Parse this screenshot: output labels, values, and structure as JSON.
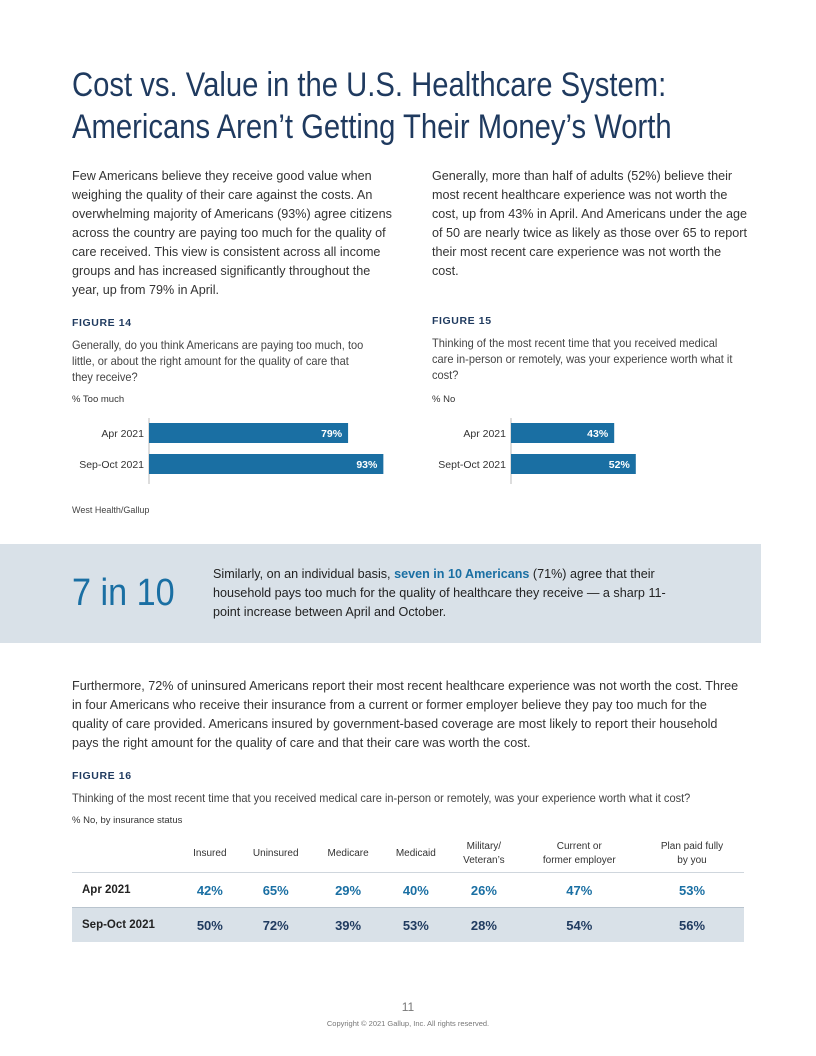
{
  "title": {
    "line1": "Cost vs. Value in the U.S. Healthcare System:",
    "line2": "Americans Aren’t Getting Their Money’s Worth"
  },
  "intro_left": "Few Americans believe they receive good value when weighing the quality of their care against the costs. An overwhelming majority of Americans (93%) agree citizens across the country are paying too much for the quality of care received. This view is consistent across all income groups and has increased significantly throughout the year, up from 79% in April.",
  "intro_right": "Generally, more than half of adults (52%) believe their most recent healthcare experience was not worth the cost, up from 43% in April. And Americans under the age of 50 are nearly twice as likely as those over 65 to report their most recent care experience was not worth the cost.",
  "figure14": {
    "label": "FIGURE 14",
    "question": "Generally, do you think Americans are paying too much, too little, or about the right amount for the quality of care that they receive?",
    "unit": "% Too much"
  },
  "figure15": {
    "label": "FIGURE 15",
    "question": "Thinking of the most recent time that you received medical care in-person or remotely, was your experience worth what it cost?",
    "unit": "% No"
  },
  "chart_data": [
    {
      "type": "bar",
      "orientation": "horizontal",
      "categories": [
        "Apr 2021",
        "Sep-Oct 2021"
      ],
      "values": [
        79,
        93
      ],
      "value_labels": [
        "79%",
        "93%"
      ],
      "title": "",
      "xlabel": "",
      "ylabel": "",
      "xlim": [
        0,
        100
      ],
      "grid": false,
      "color": "#1a6fa3"
    },
    {
      "type": "bar",
      "orientation": "horizontal",
      "categories": [
        "Apr 2021",
        "Sept-Oct 2021"
      ],
      "values": [
        43,
        52
      ],
      "value_labels": [
        "43%",
        "52%"
      ],
      "title": "",
      "xlabel": "",
      "ylabel": "",
      "xlim": [
        0,
        100
      ],
      "grid": false,
      "color": "#1a6fa3"
    },
    {
      "type": "table",
      "columns": [
        "Insured",
        "Uninsured",
        "Medicare",
        "Medicaid",
        "Military/ Veteran’s",
        "Current or former employer",
        "Plan paid fully by you"
      ],
      "rows": [
        {
          "label": "Apr 2021",
          "values": [
            "42%",
            "65%",
            "29%",
            "40%",
            "26%",
            "47%",
            "53%"
          ]
        },
        {
          "label": "Sep-Oct 2021",
          "values": [
            "50%",
            "72%",
            "39%",
            "53%",
            "28%",
            "54%",
            "56%"
          ]
        }
      ]
    }
  ],
  "source": "West Health/Gallup",
  "callout": {
    "big": "7 in 10",
    "text_before": "Similarly, on an individual basis, ",
    "text_highlight": "seven in 10 Americans",
    "text_after": " (71%) agree that their household pays too much for the quality of healthcare they receive — a sharp 11-point increase between April and October."
  },
  "body2": "Furthermore, 72% of uninsured Americans report their most recent healthcare experience was not worth the cost. Three in four Americans who receive their insurance from a current or former employer believe they pay too much for the quality of care provided. Americans insured by government-based coverage are most likely to report their household pays the right amount for the quality of care and that their care was worth the cost.",
  "figure16": {
    "label": "FIGURE 16",
    "question": "Thinking of the most recent time that you received medical care in-person or remotely, was your experience worth what it cost?",
    "unit": "% No, by insurance status",
    "header_lines": [
      [
        "Insured"
      ],
      [
        "Uninsured"
      ],
      [
        "Medicare"
      ],
      [
        "Medicaid"
      ],
      [
        "Military/",
        "Veteran’s"
      ],
      [
        "Current or",
        "former employer"
      ],
      [
        "Plan paid fully",
        "by you"
      ]
    ]
  },
  "footer": {
    "page_number": "11",
    "copyright": "Copyright © 2021 Gallup, Inc. All rights reserved."
  },
  "colors": {
    "title": "#1f3a5f",
    "accent": "#1a6fa3",
    "callout_bg": "#d9e1e8",
    "bar": "#1a6fa3"
  }
}
